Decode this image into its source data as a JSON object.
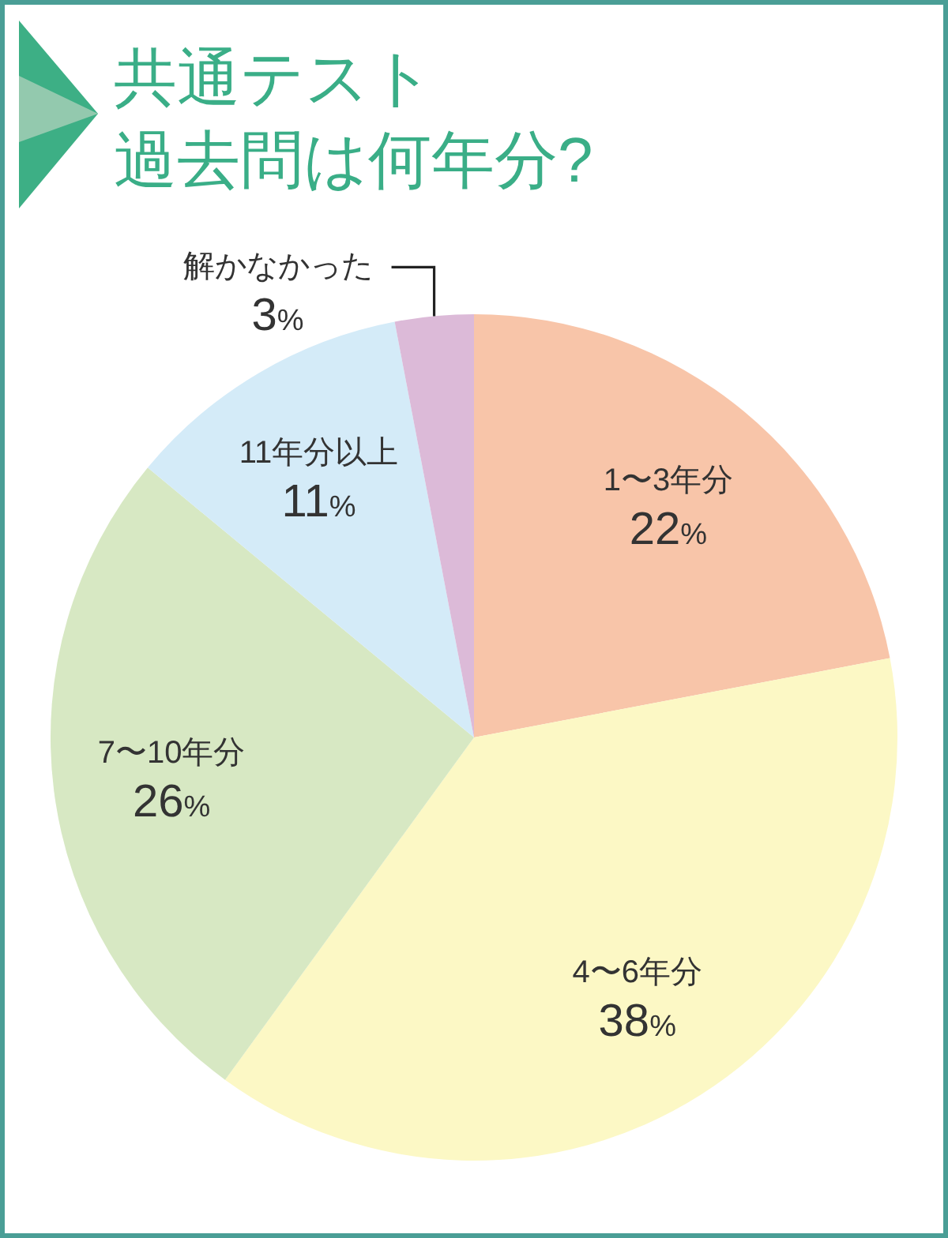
{
  "chart_data": {
    "type": "pie",
    "title": "共通テスト",
    "subtitle": "過去問は何年分?",
    "categories": [
      "1〜3年分",
      "4〜6年分",
      "7〜10年分",
      "11年分以上",
      "解かなかった"
    ],
    "values": [
      22,
      38,
      26,
      11,
      3
    ],
    "colors": [
      "#f8c5a9",
      "#fcf8c5",
      "#d7e8c3",
      "#d4ebf8",
      "#dcbad8"
    ],
    "value_labels": [
      "22%",
      "38%",
      "26%",
      "11%",
      "3%"
    ]
  }
}
